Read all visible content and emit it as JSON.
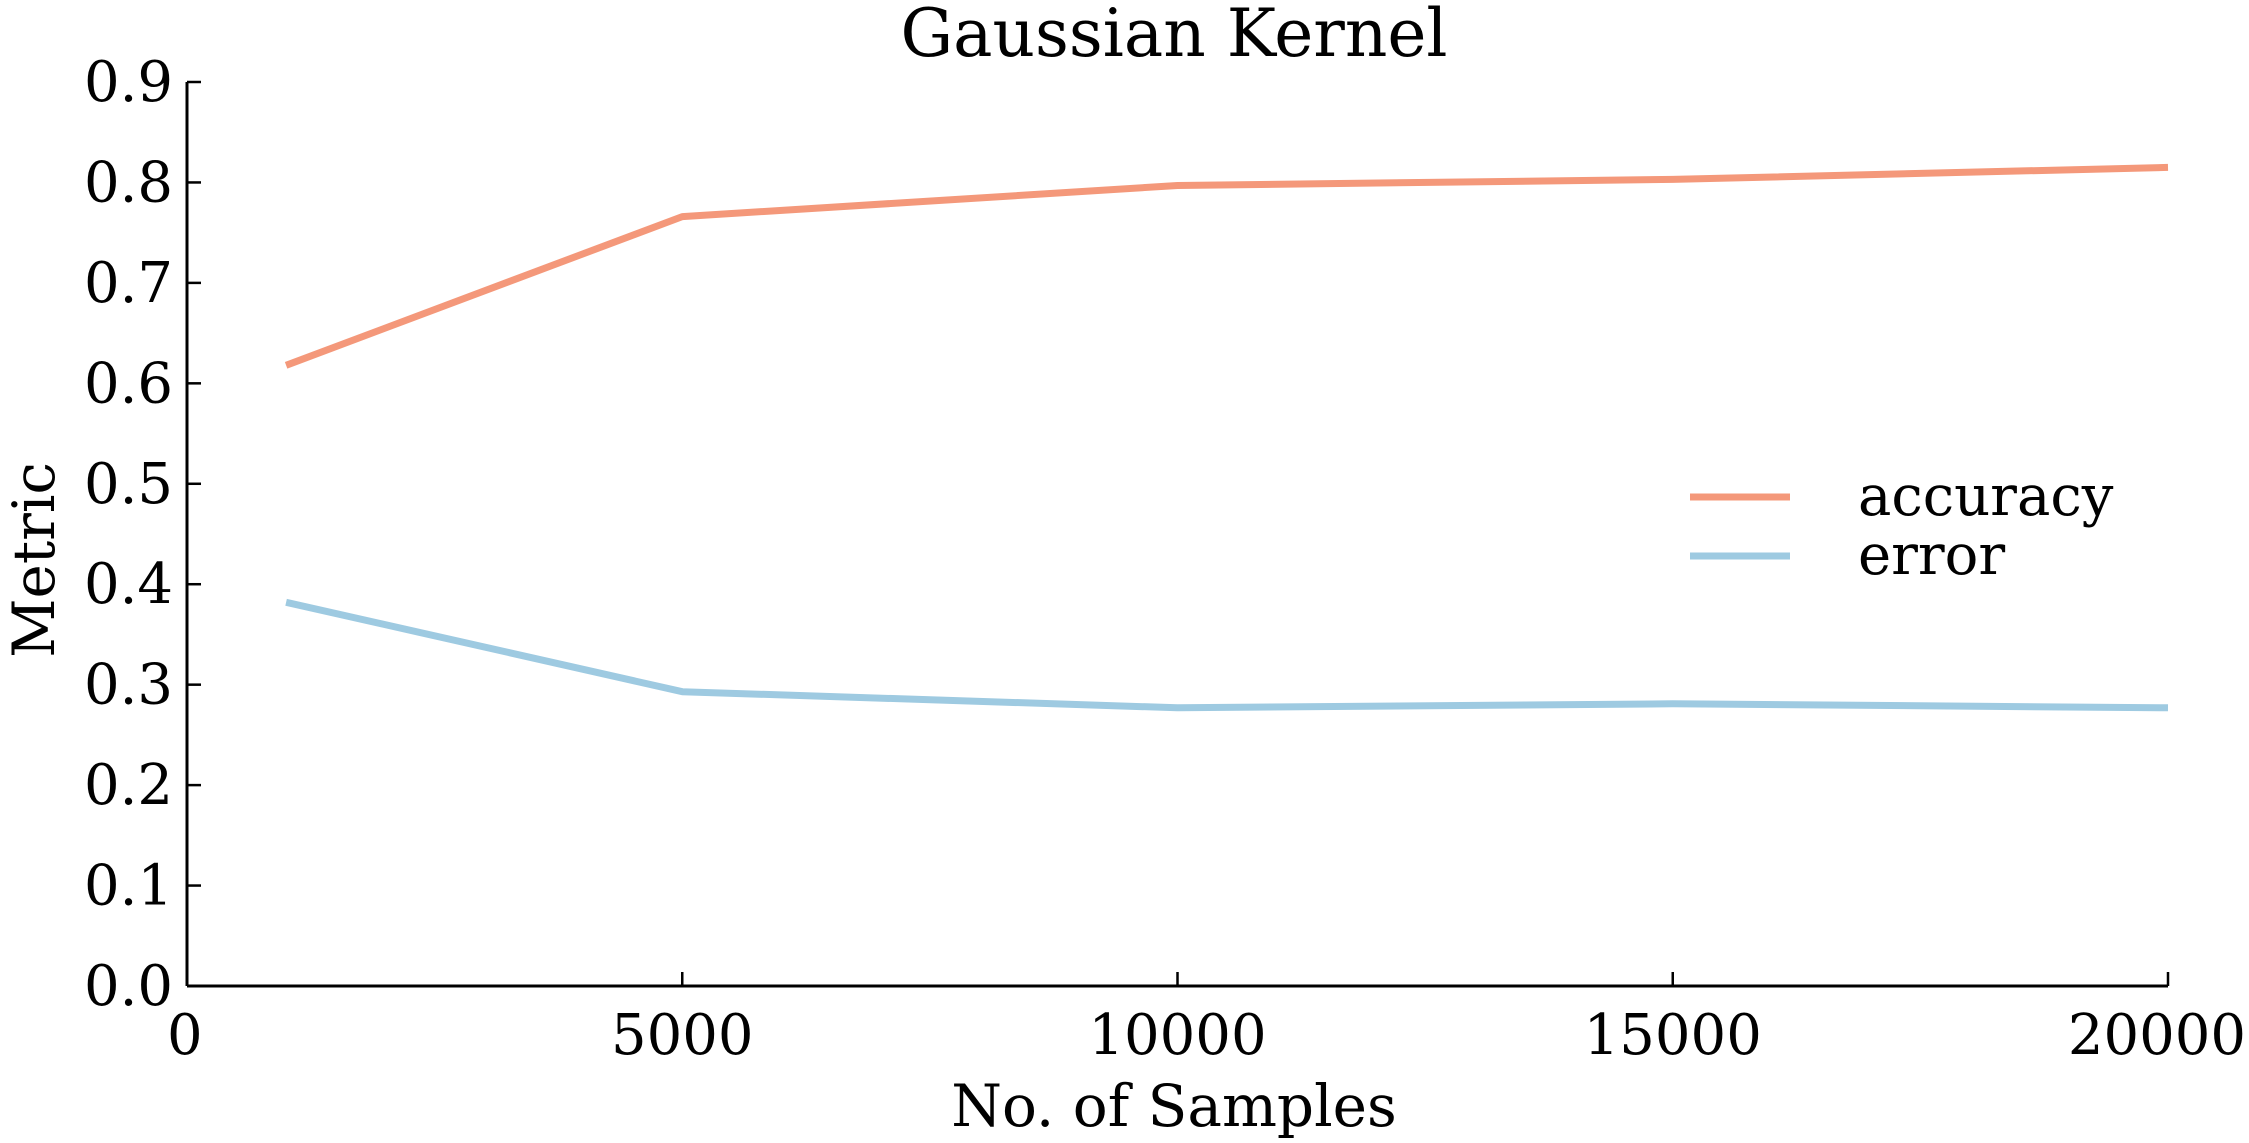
{
  "chart_data": {
    "type": "line",
    "title": "Gaussian Kernel",
    "xlabel": "No. of Samples",
    "ylabel": "Metric",
    "xlim": [
      0,
      20000
    ],
    "ylim": [
      0.0,
      0.9
    ],
    "xticks": [
      0,
      5000,
      10000,
      15000,
      20000
    ],
    "xtick_labels": [
      "0",
      "5000",
      "10000",
      "15000",
      "20000"
    ],
    "yticks": [
      0.0,
      0.1,
      0.2,
      0.3,
      0.4,
      0.5,
      0.6,
      0.7,
      0.8,
      0.9
    ],
    "ytick_labels": [
      "0.0",
      "0.1",
      "0.2",
      "0.3",
      "0.4",
      "0.5",
      "0.6",
      "0.7",
      "0.8",
      "0.9"
    ],
    "grid": false,
    "legend_position": "center-right",
    "x": [
      1000,
      5000,
      10000,
      15000,
      20000
    ],
    "series": [
      {
        "name": "accuracy",
        "color": "#f4987a",
        "values": [
          0.618,
          0.766,
          0.797,
          0.803,
          0.815
        ]
      },
      {
        "name": "error",
        "color": "#9ecae1",
        "values": [
          0.382,
          0.293,
          0.277,
          0.281,
          0.277
        ]
      }
    ]
  }
}
